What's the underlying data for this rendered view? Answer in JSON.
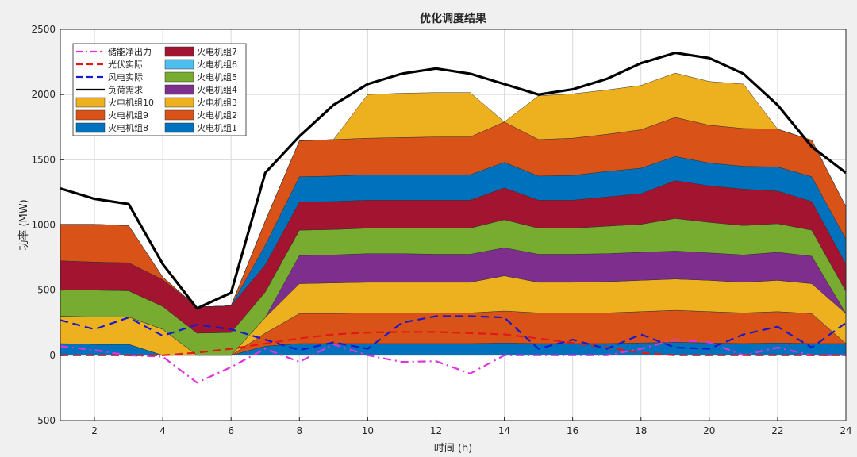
{
  "chart_data": {
    "type": "area",
    "title": "优化调度结果",
    "xlabel": "时间 (h)",
    "ylabel": "功率 (MW)",
    "xlim": [
      1,
      24
    ],
    "ylim": [
      -500,
      2500
    ],
    "xticks": [
      2,
      4,
      6,
      8,
      10,
      12,
      14,
      16,
      18,
      20,
      22,
      24
    ],
    "yticks": [
      -500,
      0,
      500,
      1000,
      1500,
      2000,
      2500
    ],
    "grid": true,
    "legend_position": "top-left",
    "x": [
      1,
      2,
      3,
      4,
      5,
      6,
      7,
      8,
      9,
      10,
      11,
      12,
      13,
      14,
      15,
      16,
      17,
      18,
      19,
      20,
      21,
      22,
      23,
      24
    ],
    "stack_order": [
      "火电机组8",
      "火电机组9",
      "火电机组10",
      "火电机组4",
      "火电机组5",
      "火电机组7",
      "火电机组1",
      "火电机组2",
      "火电机组3"
    ],
    "stacked_series": [
      {
        "name": "火电机组8",
        "color": "#0072BD",
        "values": [
          90,
          85,
          85,
          0,
          0,
          0,
          70,
          90,
          90,
          90,
          90,
          90,
          90,
          95,
          90,
          90,
          90,
          95,
          100,
          95,
          90,
          95,
          90,
          90
        ]
      },
      {
        "name": "火电机组9",
        "color": "#D95319",
        "values": [
          0,
          0,
          0,
          0,
          0,
          0,
          100,
          230,
          230,
          235,
          235,
          235,
          235,
          245,
          235,
          235,
          235,
          240,
          245,
          240,
          235,
          240,
          230,
          0
        ]
      },
      {
        "name": "火电机组10",
        "color": "#EDB120",
        "values": [
          210,
          210,
          210,
          200,
          0,
          0,
          120,
          230,
          235,
          235,
          235,
          235,
          235,
          270,
          235,
          235,
          240,
          240,
          240,
          240,
          235,
          240,
          230,
          230
        ]
      },
      {
        "name": "火电机组4",
        "color": "#7E2F8E",
        "values": [
          0,
          0,
          0,
          0,
          0,
          0,
          0,
          215,
          215,
          220,
          220,
          215,
          215,
          215,
          215,
          215,
          215,
          215,
          215,
          210,
          210,
          215,
          210,
          0
        ]
      },
      {
        "name": "火电机组5",
        "color": "#77AC30",
        "values": [
          200,
          205,
          200,
          175,
          170,
          175,
          195,
          195,
          195,
          195,
          195,
          200,
          200,
          215,
          200,
          200,
          210,
          215,
          250,
          235,
          225,
          220,
          200,
          170
        ]
      },
      {
        "name": "火电机组7",
        "color": "#A2142F",
        "values": [
          225,
          215,
          215,
          205,
          200,
          205,
          210,
          215,
          215,
          215,
          215,
          215,
          215,
          245,
          215,
          215,
          225,
          235,
          290,
          280,
          280,
          250,
          220,
          210
        ]
      },
      {
        "name": "火电机组1",
        "color": "#0072BD",
        "values": [
          0,
          0,
          0,
          0,
          0,
          0,
          150,
          195,
          195,
          195,
          195,
          195,
          195,
          195,
          185,
          190,
          195,
          195,
          185,
          175,
          175,
          185,
          190,
          190
        ]
      },
      {
        "name": "火电机组2",
        "color": "#D95319",
        "values": [
          280,
          290,
          285,
          20,
          0,
          0,
          185,
          275,
          280,
          280,
          285,
          290,
          290,
          310,
          280,
          285,
          285,
          295,
          300,
          290,
          290,
          290,
          280,
          250
        ]
      },
      {
        "name": "火电机组3",
        "color": "#EDB120",
        "values": [
          0,
          0,
          0,
          0,
          0,
          0,
          0,
          0,
          0,
          335,
          340,
          340,
          340,
          0,
          335,
          340,
          340,
          340,
          340,
          335,
          340,
          0,
          0,
          0
        ]
      }
    ],
    "line_series": [
      {
        "name": "负荷需求",
        "color": "#000000",
        "style": "solid",
        "width": 3.2,
        "values": [
          1280,
          1200,
          1160,
          700,
          360,
          480,
          1400,
          1680,
          1920,
          2080,
          2160,
          2200,
          2160,
          2080,
          2000,
          2040,
          2120,
          2240,
          2320,
          2280,
          2160,
          1920,
          1600,
          1400
        ]
      },
      {
        "name": "储能净出力",
        "color": "#E033E0",
        "style": "dashdot",
        "width": 2.2,
        "values": [
          70,
          40,
          0,
          -10,
          -210,
          -90,
          50,
          -50,
          85,
          0,
          -50,
          -45,
          -140,
          0,
          0,
          0,
          0,
          50,
          120,
          100,
          0,
          60,
          0,
          0
        ]
      },
      {
        "name": "光伏实际",
        "color": "#E01A1A",
        "style": "dashed",
        "width": 2.2,
        "values": [
          0,
          0,
          0,
          0,
          20,
          50,
          90,
          130,
          160,
          175,
          180,
          180,
          170,
          160,
          130,
          95,
          60,
          20,
          0,
          0,
          0,
          0,
          0,
          0
        ]
      },
      {
        "name": "风电实际",
        "color": "#1A1ACC",
        "style": "dashed",
        "width": 2.2,
        "values": [
          270,
          200,
          290,
          150,
          235,
          200,
          120,
          40,
          100,
          50,
          250,
          300,
          300,
          290,
          50,
          120,
          50,
          160,
          60,
          50,
          160,
          220,
          60,
          250
        ]
      }
    ],
    "legend": {
      "left_column": [
        {
          "label": "储能净出力",
          "kind": "line",
          "color": "#E033E0",
          "style": "dashdot"
        },
        {
          "label": "光伏实际",
          "kind": "line",
          "color": "#E01A1A",
          "style": "dashed"
        },
        {
          "label": "风电实际",
          "kind": "line",
          "color": "#1A1ACC",
          "style": "dashed"
        },
        {
          "label": "负荷需求",
          "kind": "line",
          "color": "#000000",
          "style": "solid"
        },
        {
          "label": "火电机组10",
          "kind": "patch",
          "color": "#EDB120"
        },
        {
          "label": "火电机组9",
          "kind": "patch",
          "color": "#D95319"
        },
        {
          "label": "火电机组8",
          "kind": "patch",
          "color": "#0072BD"
        }
      ],
      "right_column": [
        {
          "label": "火电机组7",
          "kind": "patch",
          "color": "#A2142F"
        },
        {
          "label": "火电机组6",
          "kind": "patch",
          "color": "#4DBEEE"
        },
        {
          "label": "火电机组5",
          "kind": "patch",
          "color": "#77AC30"
        },
        {
          "label": "火电机组4",
          "kind": "patch",
          "color": "#7E2F8E"
        },
        {
          "label": "火电机组3",
          "kind": "patch",
          "color": "#EDB120"
        },
        {
          "label": "火电机组2",
          "kind": "patch",
          "color": "#D95319"
        },
        {
          "label": "火电机组1",
          "kind": "patch",
          "color": "#0072BD"
        }
      ]
    }
  }
}
